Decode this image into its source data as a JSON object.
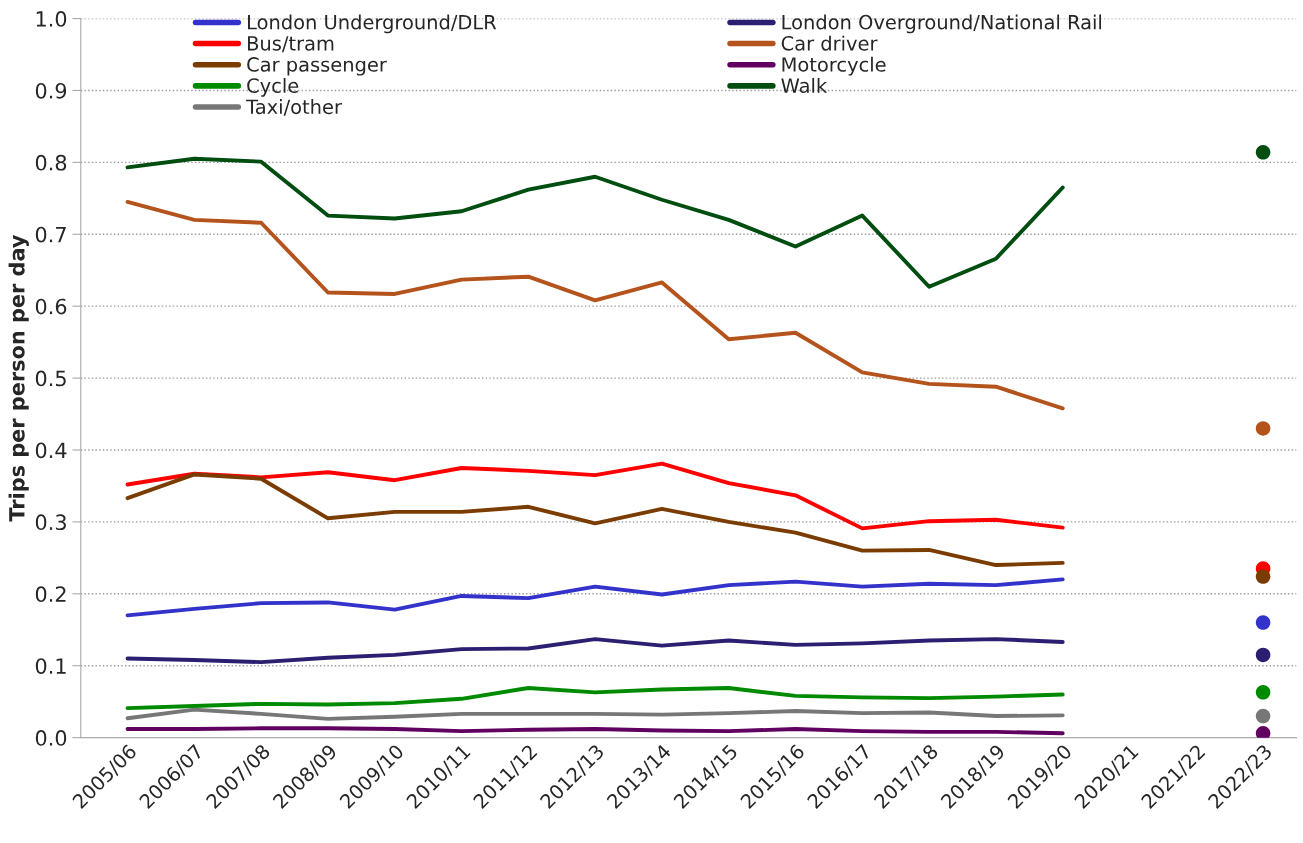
{
  "chart_data": {
    "type": "line",
    "ylabel": "Trips per person per day",
    "categories": [
      "2005/06",
      "2006/07",
      "2007/08",
      "2008/09",
      "2009/10",
      "2010/11",
      "2011/12",
      "2012/13",
      "2013/14",
      "2014/15",
      "2015/16",
      "2016/17",
      "2017/18",
      "2018/19",
      "2019/20",
      "2020/21",
      "2021/22",
      "2022/23"
    ],
    "ylim": [
      0,
      1.0
    ],
    "yticks": [
      {
        "value": 0,
        "label": "0.0"
      },
      0.1,
      0.2,
      0.3,
      0.4,
      0.5,
      0.6,
      0.7,
      0.8,
      0.9,
      {
        "value": 1.0,
        "label": "1.0"
      }
    ],
    "grid": "y",
    "legend": "top left",
    "line_style": "solid",
    "series": [
      {
        "name": "London Underground/DLR",
        "color": "#3333cc",
        "values": [
          0.17,
          0.179,
          0.187,
          0.188,
          0.178,
          0.197,
          0.194,
          0.21,
          0.199,
          0.212,
          0.217,
          0.21,
          0.214,
          0.212,
          0.22,
          null,
          null,
          0.16
        ]
      },
      {
        "name": "London Overground/National Rail",
        "color": "#2a1f70",
        "values": [
          0.11,
          0.108,
          0.105,
          0.111,
          0.115,
          0.123,
          0.124,
          0.137,
          0.128,
          0.135,
          0.129,
          0.131,
          0.135,
          0.137,
          0.133,
          null,
          null,
          0.115
        ]
      },
      {
        "name": "Bus/tram",
        "color": "#ff0000",
        "values": [
          0.352,
          0.367,
          0.362,
          0.369,
          0.358,
          0.375,
          0.371,
          0.365,
          0.381,
          0.354,
          0.337,
          0.291,
          0.301,
          0.303,
          0.292,
          null,
          null,
          0.235
        ]
      },
      {
        "name": "Car driver",
        "color": "#b5531c",
        "values": [
          0.745,
          0.72,
          0.716,
          0.619,
          0.617,
          0.637,
          0.641,
          0.608,
          0.633,
          0.554,
          0.563,
          0.508,
          0.492,
          0.488,
          0.458,
          null,
          null,
          0.43
        ]
      },
      {
        "name": "Car passenger",
        "color": "#7a3c00",
        "values": [
          0.333,
          0.366,
          0.36,
          0.305,
          0.314,
          0.314,
          0.321,
          0.298,
          0.318,
          0.3,
          0.285,
          0.26,
          0.261,
          0.24,
          0.243,
          null,
          null,
          0.224
        ]
      },
      {
        "name": "Motorcycle",
        "color": "#600060",
        "values": [
          0.012,
          0.012,
          0.013,
          0.013,
          0.012,
          0.009,
          0.011,
          0.012,
          0.01,
          0.009,
          0.012,
          0.009,
          0.008,
          0.008,
          0.006,
          null,
          null,
          0.006
        ]
      },
      {
        "name": "Cycle",
        "color": "#008a00",
        "values": [
          0.041,
          0.044,
          0.047,
          0.046,
          0.048,
          0.054,
          0.069,
          0.063,
          0.067,
          0.069,
          0.058,
          0.056,
          0.055,
          0.057,
          0.06,
          null,
          null,
          0.063
        ]
      },
      {
        "name": "Walk",
        "color": "#004d10",
        "values": [
          0.793,
          0.805,
          0.801,
          0.726,
          0.722,
          0.732,
          0.762,
          0.78,
          0.748,
          0.72,
          0.683,
          0.726,
          0.627,
          0.666,
          0.765,
          null,
          null,
          0.814
        ]
      },
      {
        "name": "Taxi/other",
        "color": "#777777",
        "values": [
          0.027,
          0.039,
          0.033,
          0.026,
          0.029,
          0.033,
          0.033,
          0.033,
          0.032,
          0.034,
          0.037,
          0.034,
          0.035,
          0.03,
          0.031,
          null,
          null,
          0.03
        ]
      }
    ]
  }
}
